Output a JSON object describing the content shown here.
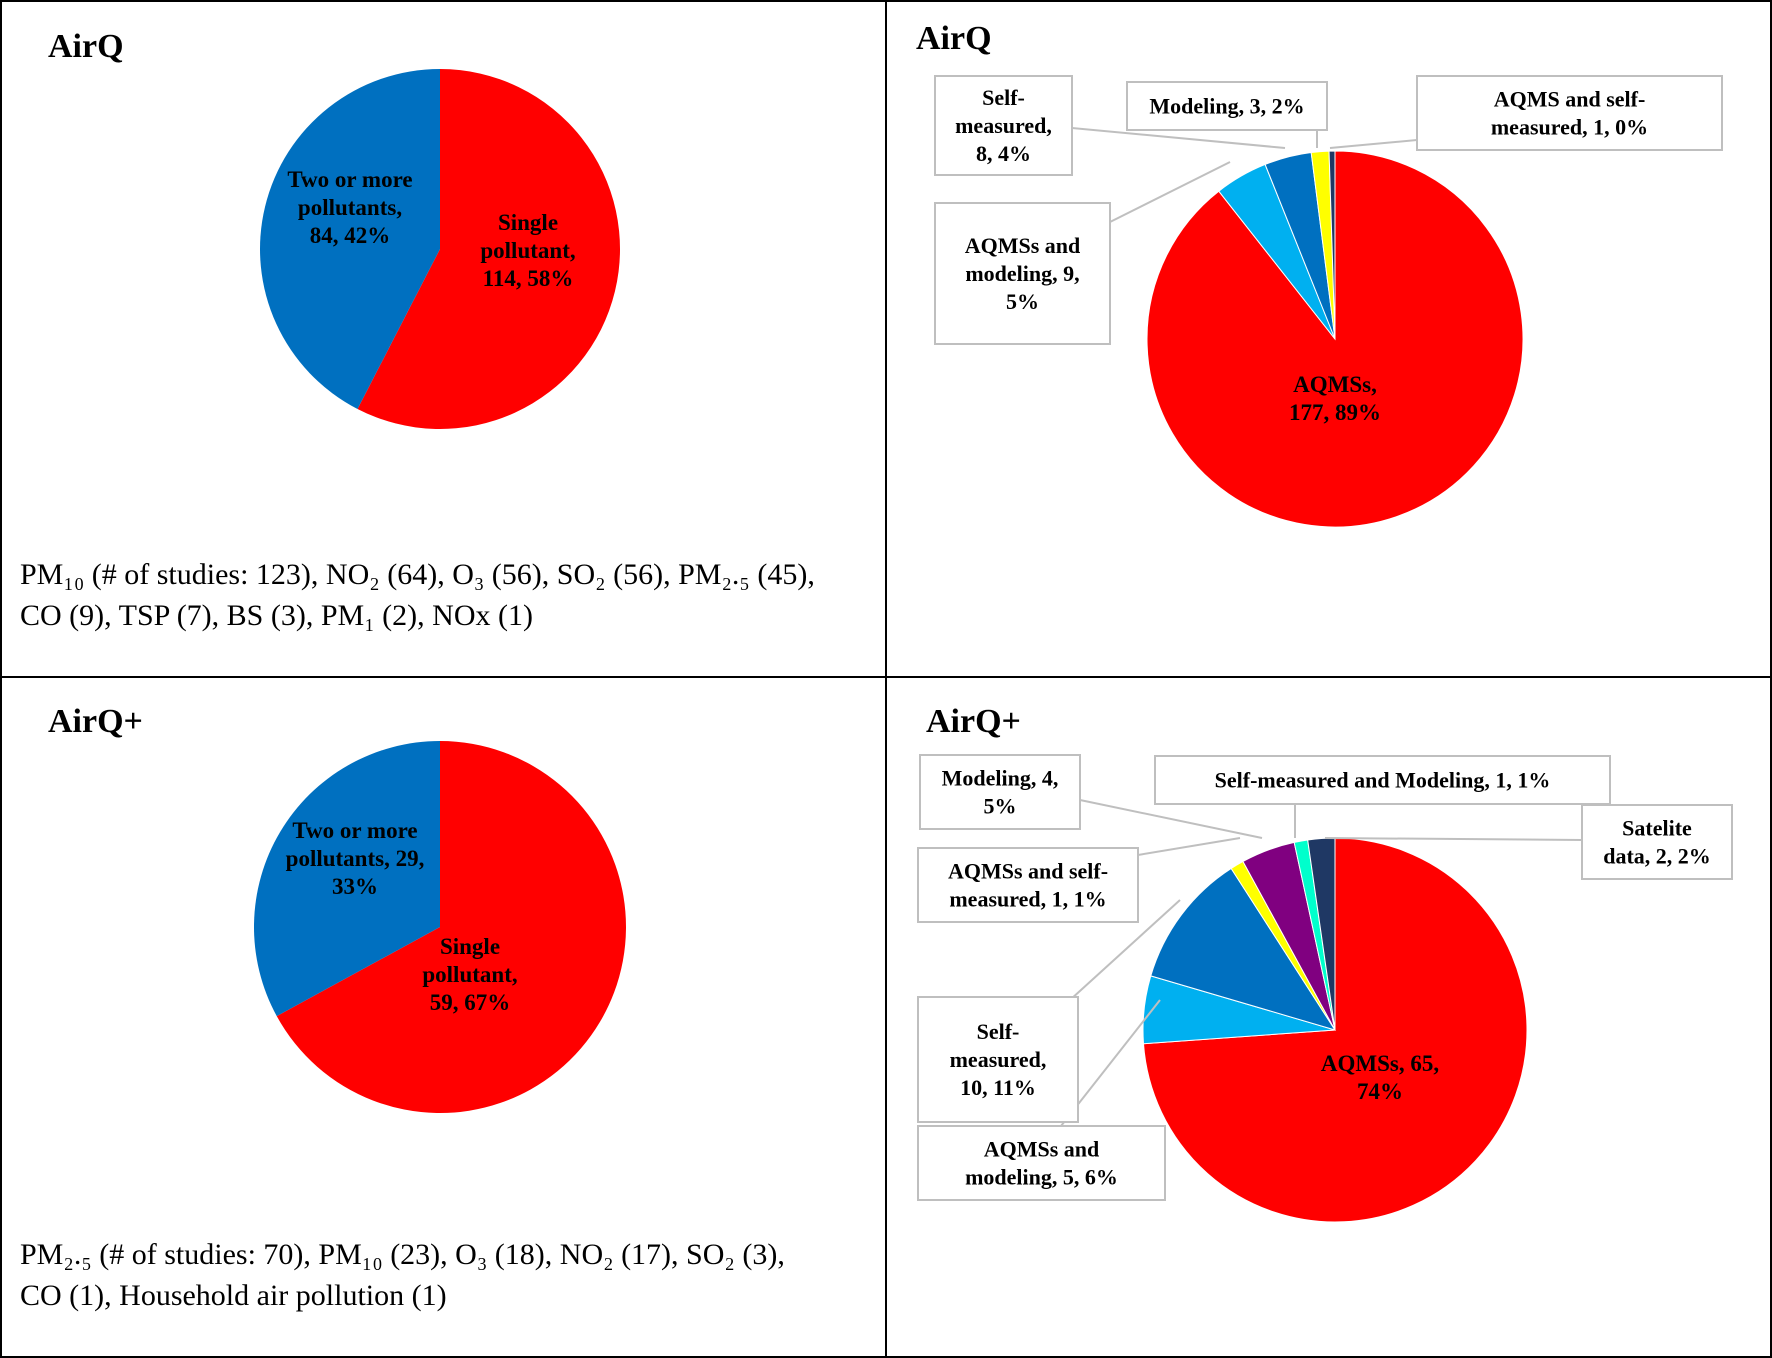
{
  "panels": [
    {
      "title": "AirQ",
      "caption_lines": [
        "PM₁₀ (# of studies: 123), NO₂ (64), O₃ (56), SO₂ (56), PM₂.₅ (45),",
        "CO (9), TSP (7), BS (3), PM₁ (2), NOx (1)"
      ]
    },
    {
      "title": "AirQ"
    },
    {
      "title": "AirQ+",
      "caption_lines": [
        "PM₂.₅ (# of studies: 70), PM₁₀ (23), O₃ (18), NO₂ (17), SO₂ (3),",
        "CO (1), Household air pollution (1)"
      ]
    },
    {
      "title": "AirQ+"
    }
  ],
  "chart_data": [
    {
      "type": "pie",
      "panel": "top-left",
      "slices": [
        {
          "category": "Single pollutant",
          "value": 114,
          "percent": "58%",
          "color": "#FF0000",
          "label_lines": [
            "Single",
            "pollutant,",
            "114, 58%"
          ]
        },
        {
          "category": "Two or more pollutants",
          "value": 84,
          "percent": "42%",
          "color": "#0070C0",
          "label_lines": [
            "Two or more",
            "pollutants,",
            "84, 42%"
          ]
        }
      ]
    },
    {
      "type": "pie",
      "panel": "top-right",
      "slices": [
        {
          "category": "AQMSs",
          "value": 177,
          "percent": "89%",
          "color": "#FF0000",
          "label_lines": [
            "AQMSs,",
            "177, 89%"
          ]
        },
        {
          "category": "AQMSs and modeling",
          "value": 9,
          "percent": "5%",
          "color": "#00B0F0",
          "label_lines": [
            "AQMSs and",
            "modeling, 9,",
            "5%"
          ]
        },
        {
          "category": "Self-measured",
          "value": 8,
          "percent": "4%",
          "color": "#0070C0",
          "label_lines": [
            "Self-",
            "measured,",
            "8, 4%"
          ]
        },
        {
          "category": "Modeling",
          "value": 3,
          "percent": "2%",
          "color": "#FFFF00",
          "label_lines": [
            "Modeling, 3, 2%"
          ]
        },
        {
          "category": "AQMS and self-measured",
          "value": 1,
          "percent": "0%",
          "color": "#1F3864",
          "label_lines": [
            "AQMS and self-",
            "measured, 1, 0%"
          ]
        }
      ]
    },
    {
      "type": "pie",
      "panel": "bottom-left",
      "slices": [
        {
          "category": "Single pollutant",
          "value": 59,
          "percent": "67%",
          "color": "#FF0000",
          "label_lines": [
            "Single",
            "pollutant,",
            "59, 67%"
          ]
        },
        {
          "category": "Two or more pollutants",
          "value": 29,
          "percent": "33%",
          "color": "#0070C0",
          "label_lines": [
            "Two or more",
            "pollutants, 29,",
            "33%"
          ]
        }
      ]
    },
    {
      "type": "pie",
      "panel": "bottom-right",
      "slices": [
        {
          "category": "AQMSs",
          "value": 65,
          "percent": "74%",
          "color": "#FF0000",
          "label_lines": [
            "AQMSs, 65,",
            "74%"
          ]
        },
        {
          "category": "AQMSs and modeling",
          "value": 5,
          "percent": "6%",
          "color": "#00B0F0",
          "label_lines": [
            "AQMSs and",
            "modeling, 5, 6%"
          ]
        },
        {
          "category": "Self-measured",
          "value": 10,
          "percent": "11%",
          "color": "#0070C0",
          "label_lines": [
            "Self-",
            "measured,",
            "10, 11%"
          ]
        },
        {
          "category": "AQMSs and self-measured",
          "value": 1,
          "percent": "1%",
          "color": "#FFFF00",
          "label_lines": [
            "AQMSs and self-",
            "measured, 1, 1%"
          ]
        },
        {
          "category": "Modeling",
          "value": 4,
          "percent": "5%",
          "color": "#800080",
          "label_lines": [
            "Modeling, 4,",
            "5%"
          ]
        },
        {
          "category": "Self-measured and Modeling",
          "value": 1,
          "percent": "1%",
          "color": "#00FFCC",
          "label_lines": [
            "Self-measured and Modeling, 1, 1%"
          ]
        },
        {
          "category": "Satelite data",
          "value": 2,
          "percent": "2%",
          "color": "#1F3864",
          "label_lines": [
            "Satelite",
            "data, 2, 2%"
          ]
        }
      ]
    }
  ]
}
